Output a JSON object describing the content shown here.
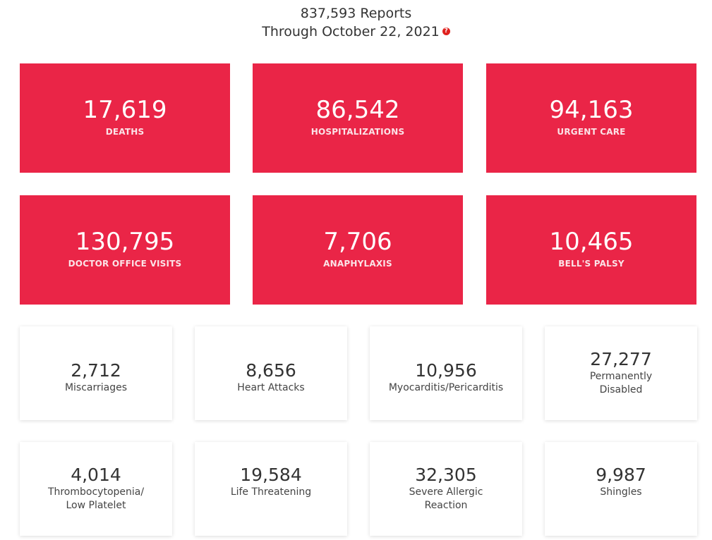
{
  "header": {
    "reports": "837,593 Reports",
    "through": "Through October 22, 2021",
    "help_glyph": "?"
  },
  "primary_stats": [
    {
      "value": "17,619",
      "label": "DEATHS"
    },
    {
      "value": "86,542",
      "label": "HOSPITALIZATIONS"
    },
    {
      "value": "94,163",
      "label": "URGENT CARE"
    },
    {
      "value": "130,795",
      "label": "DOCTOR OFFICE VISITS"
    },
    {
      "value": "7,706",
      "label": "ANAPHYLAXIS"
    },
    {
      "value": "10,465",
      "label": "BELL'S PALSY"
    }
  ],
  "secondary_stats": [
    {
      "value": "2,712",
      "label_lines": [
        "Miscarriages"
      ]
    },
    {
      "value": "8,656",
      "label_lines": [
        "Heart Attacks"
      ]
    },
    {
      "value": "10,956",
      "label_lines": [
        "Myocarditis/Pericarditis"
      ]
    },
    {
      "value": "27,277",
      "label_lines": [
        "Permanently",
        "Disabled"
      ]
    },
    {
      "value": "4,014",
      "label_lines": [
        "Thrombocytopenia/",
        "Low Platelet"
      ]
    },
    {
      "value": "19,584",
      "label_lines": [
        "Life Threatening"
      ]
    },
    {
      "value": "32,305",
      "label_lines": [
        "Severe Allergic",
        "Reaction"
      ]
    },
    {
      "value": "9,987",
      "label_lines": [
        "Shingles"
      ]
    }
  ],
  "colors": {
    "accent_red": "#ea2547",
    "help_icon_red": "#e0221f"
  }
}
